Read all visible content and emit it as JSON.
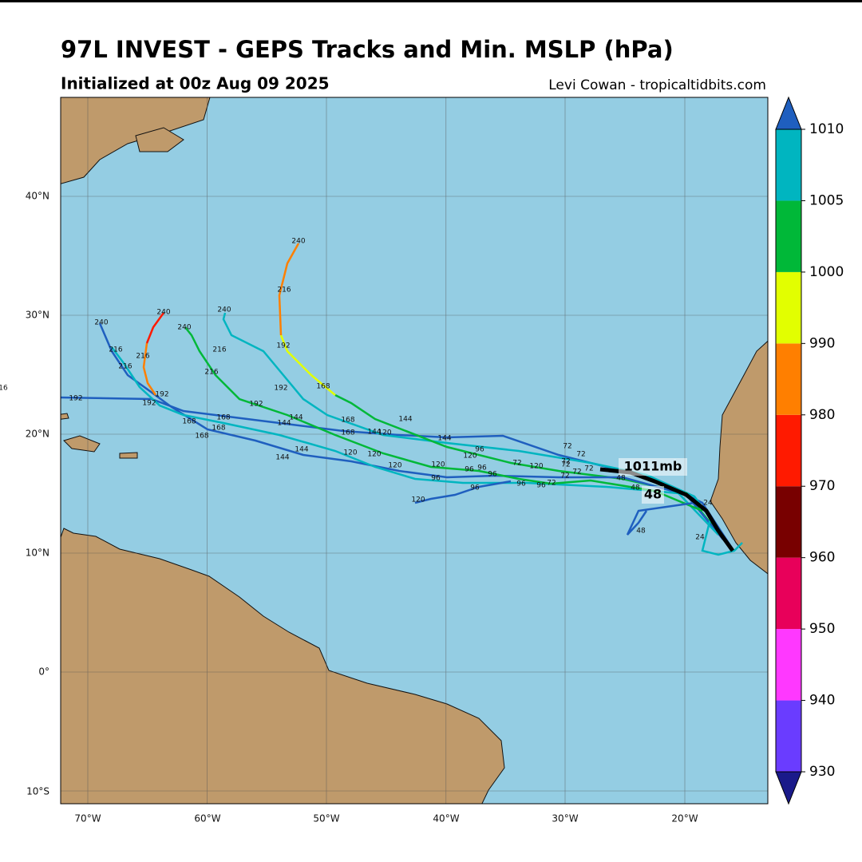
{
  "header": {
    "title": "97L INVEST - GEPS Tracks and Min. MSLP (hPa)",
    "subtitle": "Initialized at 00z Aug 09 2025",
    "credit": "Levi Cowan - tropicaltidbits.com"
  },
  "map": {
    "lat_labels": [
      "40°N",
      "30°N",
      "20°N",
      "10°N",
      "0°",
      "10°S"
    ],
    "lon_labels": [
      "70°W",
      "60°W",
      "50°W",
      "40°W",
      "30°W",
      "20°W"
    ],
    "min_pressure_label": "1011mb",
    "min_pressure_hour": "48",
    "track_labels": [
      240,
      216,
      192,
      168,
      240,
      216,
      240,
      240,
      216,
      216,
      192,
      192,
      240,
      216,
      216,
      192,
      192,
      192,
      168,
      168,
      168,
      168,
      144,
      144,
      144,
      144,
      144,
      144,
      144,
      168,
      168,
      120,
      120,
      120,
      120,
      120,
      120,
      120,
      120,
      96,
      96,
      96,
      96,
      96,
      96,
      96,
      96,
      72,
      72,
      72,
      72,
      72,
      72,
      72,
      72,
      72,
      48,
      48,
      48,
      24,
      24,
      16
    ]
  },
  "colorbar": {
    "ticks": [
      930,
      940,
      950,
      960,
      970,
      980,
      990,
      1000,
      1005,
      1010
    ],
    "colors": [
      "#6a3cff",
      "#ff38ff",
      "#e8005a",
      "#780000",
      "#ff1a00",
      "#ff7f00",
      "#e2ff00",
      "#00b838",
      "#00b5c0"
    ],
    "under_color": "#1a1a8a",
    "over_color": "#1f5fbf"
  }
}
